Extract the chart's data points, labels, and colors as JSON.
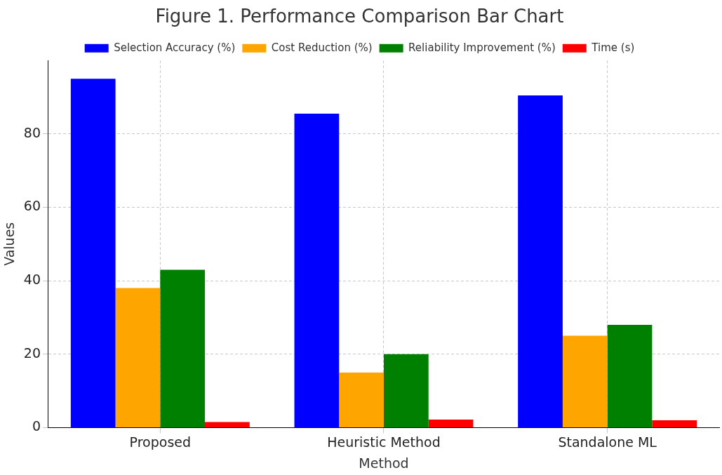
{
  "chart_data": {
    "type": "bar",
    "title": "Figure 1. Performance Comparison Bar Chart",
    "xlabel": "Method",
    "ylabel": "Values",
    "categories": [
      "Proposed",
      "Heuristic Method",
      "Standalone ML"
    ],
    "series": [
      {
        "name": "Selection Accuracy (%)",
        "color": "#0000ff",
        "values": [
          95,
          85.5,
          90.5
        ]
      },
      {
        "name": "Cost Reduction (%)",
        "color": "#ffa500",
        "values": [
          38,
          15,
          25
        ]
      },
      {
        "name": "Reliability Improvement (%)",
        "color": "#008000",
        "values": [
          43,
          20,
          28
        ]
      },
      {
        "name": "Time (s)",
        "color": "#ff0000",
        "values": [
          1.5,
          2.2,
          2
        ]
      }
    ],
    "ylim": [
      0,
      100
    ],
    "yticks": [
      0,
      20,
      40,
      60,
      80
    ],
    "grid": true,
    "legend": "top"
  }
}
